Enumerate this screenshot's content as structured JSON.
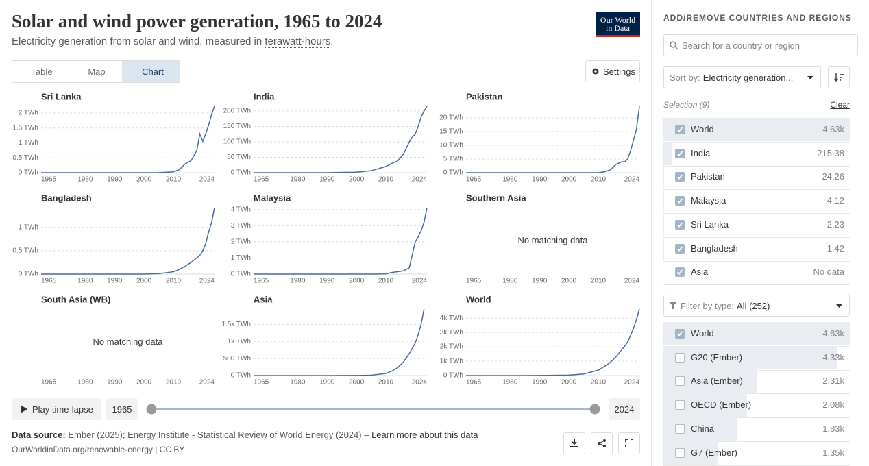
{
  "header": {
    "title": "Solar and wind power generation, 1965 to 2024",
    "subtitle_prefix": "Electricity generation from solar and wind, measured in ",
    "subtitle_link": "terawatt-hours",
    "subtitle_suffix": ".",
    "logo_line1": "Our World",
    "logo_line2": "in Data"
  },
  "tabs": [
    {
      "label": "Table",
      "active": false
    },
    {
      "label": "Map",
      "active": false
    },
    {
      "label": "Chart",
      "active": true
    }
  ],
  "settings": "Settings",
  "chart_data": [
    {
      "type": "line",
      "title": "Sri Lanka",
      "color": "#4c6a9c",
      "x": [
        1965,
        1990,
        2000,
        2005,
        2010,
        2012,
        2014,
        2016,
        2018,
        2019,
        2020,
        2021,
        2022,
        2023,
        2024
      ],
      "values": [
        0,
        0,
        0,
        0.003,
        0.03,
        0.1,
        0.3,
        0.4,
        0.75,
        1.3,
        1.05,
        1.3,
        1.6,
        1.95,
        2.23
      ],
      "xlim": [
        1965,
        2024
      ],
      "xticks": [
        1965,
        1980,
        1990,
        2000,
        2010,
        2024
      ],
      "ylim": [
        0,
        2.23
      ],
      "yticks": [
        {
          "value": 0,
          "label": "0 TWh"
        },
        {
          "value": 0.5,
          "label": "0.5 TWh"
        },
        {
          "value": 1,
          "label": "1 TWh"
        },
        {
          "value": 1.5,
          "label": "1.5 TWh"
        },
        {
          "value": 2,
          "label": "2 TWh"
        }
      ],
      "grid": true
    },
    {
      "type": "line",
      "title": "India",
      "color": "#4c6a9c",
      "x": [
        1965,
        1990,
        2000,
        2005,
        2010,
        2012,
        2014,
        2016,
        2018,
        2019,
        2020,
        2021,
        2022,
        2023,
        2024
      ],
      "values": [
        0,
        0.03,
        1.7,
        6.3,
        20,
        30,
        38,
        60,
        100,
        115,
        125,
        150,
        180,
        200,
        215.38
      ],
      "xlim": [
        1965,
        2024
      ],
      "xticks": [
        1965,
        1980,
        1990,
        2000,
        2010,
        2024
      ],
      "ylim": [
        0,
        215.38
      ],
      "yticks": [
        {
          "value": 0,
          "label": "0 TWh"
        },
        {
          "value": 50,
          "label": "50 TWh"
        },
        {
          "value": 100,
          "label": "100 TWh"
        },
        {
          "value": 150,
          "label": "150 TWh"
        },
        {
          "value": 200,
          "label": "200 TWh"
        }
      ],
      "grid": true
    },
    {
      "type": "line",
      "title": "Pakistan",
      "color": "#4c6a9c",
      "x": [
        1965,
        1990,
        2000,
        2005,
        2010,
        2012,
        2014,
        2016,
        2018,
        2019,
        2020,
        2021,
        2022,
        2023,
        2024
      ],
      "values": [
        0,
        0,
        0,
        0,
        0,
        0.3,
        1,
        3,
        4,
        4,
        5,
        8,
        12,
        16,
        24.26
      ],
      "xlim": [
        1965,
        2024
      ],
      "xticks": [
        1965,
        1980,
        1990,
        2000,
        2010,
        2024
      ],
      "ylim": [
        0,
        24.26
      ],
      "yticks": [
        {
          "value": 0,
          "label": "0 TWh"
        },
        {
          "value": 5,
          "label": "5 TWh"
        },
        {
          "value": 10,
          "label": "10 TWh"
        },
        {
          "value": 15,
          "label": "15 TWh"
        },
        {
          "value": 20,
          "label": "20 TWh"
        }
      ],
      "grid": true
    },
    {
      "type": "line",
      "title": "Bangladesh",
      "color": "#4c6a9c",
      "x": [
        1965,
        1990,
        2000,
        2005,
        2010,
        2012,
        2014,
        2016,
        2018,
        2019,
        2020,
        2021,
        2022,
        2023,
        2024
      ],
      "values": [
        0,
        0,
        0,
        0.01,
        0.05,
        0.1,
        0.17,
        0.25,
        0.35,
        0.4,
        0.5,
        0.65,
        0.9,
        1.1,
        1.42
      ],
      "xlim": [
        1965,
        2024
      ],
      "xticks": [
        1965,
        1980,
        1990,
        2000,
        2010,
        2024
      ],
      "ylim": [
        0,
        1.42
      ],
      "yticks": [
        {
          "value": 0,
          "label": "0 TWh"
        },
        {
          "value": 0.5,
          "label": "0.5 TWh"
        },
        {
          "value": 1,
          "label": "1 TWh"
        }
      ],
      "grid": true
    },
    {
      "type": "line",
      "title": "Malaysia",
      "color": "#4c6a9c",
      "x": [
        1965,
        1990,
        2000,
        2005,
        2010,
        2012,
        2014,
        2016,
        2018,
        2019,
        2020,
        2021,
        2022,
        2023,
        2024
      ],
      "values": [
        0,
        0,
        0,
        0,
        0.01,
        0.1,
        0.15,
        0.2,
        0.4,
        1.2,
        2,
        2.3,
        2.7,
        3.2,
        4.12
      ],
      "xlim": [
        1965,
        2024
      ],
      "xticks": [
        1965,
        1980,
        1990,
        2000,
        2010,
        2024
      ],
      "ylim": [
        0,
        4.12
      ],
      "yticks": [
        {
          "value": 0,
          "label": "0 TWh"
        },
        {
          "value": 1,
          "label": "1 TWh"
        },
        {
          "value": 2,
          "label": "2 TWh"
        },
        {
          "value": 3,
          "label": "3 TWh"
        },
        {
          "value": 4,
          "label": "4 TWh"
        }
      ],
      "grid": true
    },
    {
      "type": "line",
      "title": "Southern Asia",
      "message": "No matching data",
      "x": [],
      "values": [],
      "xlim": [
        1965,
        2024
      ],
      "xticks": [
        1965,
        1980,
        1990,
        2000,
        2010,
        2024
      ]
    },
    {
      "type": "line",
      "title": "South Asia (WB)",
      "message": "No matching data",
      "x": [],
      "values": [],
      "xlim": [
        1965,
        2024
      ],
      "xticks": [
        1965,
        1980,
        1990,
        2000,
        2010,
        2024
      ]
    },
    {
      "type": "line",
      "title": "Asia",
      "color": "#4c6a9c",
      "x": [
        1965,
        1990,
        2000,
        2005,
        2010,
        2012,
        2014,
        2016,
        2018,
        2019,
        2020,
        2021,
        2022,
        2023,
        2024
      ],
      "values": [
        0,
        0.5,
        3,
        10,
        60,
        130,
        230,
        400,
        650,
        800,
        950,
        1200,
        1500,
        1950,
        null
      ],
      "xlim": [
        1965,
        2024
      ],
      "xticks": [
        1965,
        1980,
        1990,
        2000,
        2010,
        2024
      ],
      "ylim": [
        0,
        1950
      ],
      "yticks": [
        {
          "value": 0,
          "label": "0 TWh"
        },
        {
          "value": 500,
          "label": "500 TWh"
        },
        {
          "value": 1000,
          "label": "1k TWh"
        },
        {
          "value": 1500,
          "label": "1.5k TWh"
        }
      ],
      "grid": true
    },
    {
      "type": "line",
      "title": "World",
      "color": "#4c6a9c",
      "x": [
        1965,
        1990,
        2000,
        2005,
        2010,
        2012,
        2014,
        2016,
        2018,
        2019,
        2020,
        2021,
        2022,
        2023,
        2024
      ],
      "values": [
        0,
        4,
        32,
        106,
        376,
        620,
        900,
        1300,
        1800,
        2050,
        2350,
        2800,
        3300,
        3900,
        4630
      ],
      "xlim": [
        1965,
        2024
      ],
      "xticks": [
        1965,
        1980,
        1990,
        2000,
        2010,
        2024
      ],
      "ylim": [
        0,
        4630
      ],
      "yticks": [
        {
          "value": 0,
          "label": "0 TWh"
        },
        {
          "value": 1000,
          "label": "1k TWh"
        },
        {
          "value": 2000,
          "label": "2k TWh"
        },
        {
          "value": 3000,
          "label": "3k TWh"
        },
        {
          "value": 4000,
          "label": "4k TWh"
        }
      ],
      "grid": true
    }
  ],
  "timeline": {
    "play": "Play time-lapse",
    "start": "1965",
    "end": "2024"
  },
  "footer": {
    "source_label": "Data source:",
    "source_text": "Ember (2025); Energy Institute - Statistical Review of World Energy (2024) – ",
    "learn_more": "Learn more about this data",
    "url": "OurWorldinData.org/renewable-energy | CC BY"
  },
  "sidebar": {
    "title": "ADD/REMOVE COUNTRIES AND REGIONS",
    "search_placeholder": "Search for a country or region",
    "sort_label": "Sort by:",
    "sort_value": "Electricity generation...",
    "selection_label": "Selection (9)",
    "clear": "Clear",
    "selected": [
      {
        "name": "World",
        "value": 4630,
        "label": "4.63k",
        "checked": true
      },
      {
        "name": "India",
        "value": 215.38,
        "label": "215.38",
        "checked": true
      },
      {
        "name": "Pakistan",
        "value": 24.26,
        "label": "24.26",
        "checked": true
      },
      {
        "name": "Malaysia",
        "value": 4.12,
        "label": "4.12",
        "checked": true
      },
      {
        "name": "Sri Lanka",
        "value": 2.23,
        "label": "2.23",
        "checked": true
      },
      {
        "name": "Bangladesh",
        "value": 1.42,
        "label": "1.42",
        "checked": true
      },
      {
        "name": "Asia",
        "value": null,
        "label": "No data",
        "checked": true
      }
    ],
    "filter_label": "Filter by type:",
    "filter_value": "All (252)",
    "entities": [
      {
        "name": "World",
        "value": 4630,
        "label": "4.63k",
        "checked": true
      },
      {
        "name": "G20 (Ember)",
        "value": 4330,
        "label": "4.33k",
        "checked": false
      },
      {
        "name": "Asia (Ember)",
        "value": 2310,
        "label": "2.31k",
        "checked": false
      },
      {
        "name": "OECD (Ember)",
        "value": 2080,
        "label": "2.08k",
        "checked": false
      },
      {
        "name": "China",
        "value": 1830,
        "label": "1.83k",
        "checked": false
      },
      {
        "name": "G7 (Ember)",
        "value": 1350,
        "label": "1.35k",
        "checked": false
      }
    ]
  }
}
